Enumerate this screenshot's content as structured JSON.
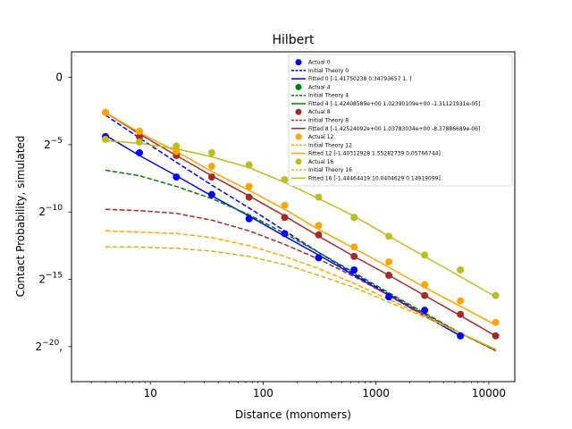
{
  "chart_data": {
    "type": "line",
    "title": "Hilbert",
    "xlabel": "Distance (monomers)",
    "ylabel": "Contact Probability, simulated",
    "x_scale": "log",
    "y_scale": "log2",
    "xlim": [
      2.0,
      17000
    ],
    "ylim": [
      -22.6,
      1.9
    ],
    "x_ticks": [
      {
        "value": 10,
        "label": "10"
      },
      {
        "value": 100,
        "label": "100"
      },
      {
        "value": 1000,
        "label": "1000"
      },
      {
        "value": 10000,
        "label": "10000"
      }
    ],
    "y_ticks": [
      {
        "value": 0,
        "label": "0"
      },
      {
        "value": -5,
        "base": "2",
        "exp": "−5"
      },
      {
        "value": -10,
        "base": "2",
        "exp": "−10"
      },
      {
        "value": -15,
        "base": "2",
        "exp": "−15"
      },
      {
        "value": -20,
        "base": "2",
        "exp": "−20",
        "suffix": ","
      }
    ],
    "legend_position": "top-right",
    "series": [
      {
        "name": "Actual 0",
        "kind": "scatter",
        "color": "#0000ff",
        "x": [
          4,
          8,
          17,
          35,
          75,
          155,
          310,
          640,
          1300,
          2700,
          5600
        ],
        "y": [
          -4.4,
          -5.6,
          -7.4,
          -8.7,
          -10.5,
          -11.6,
          -13.4,
          -14.3,
          -16.3,
          -17.3,
          -19.2
        ]
      },
      {
        "name": "Initial Theory 0",
        "kind": "line",
        "dashed": true,
        "color": "#0000ff",
        "x": [
          4,
          8,
          17,
          35,
          75,
          155,
          310,
          640,
          1300,
          2700,
          5600,
          11500
        ],
        "y": [
          -2.8,
          -4.5,
          -6.3,
          -8.0,
          -9.7,
          -11.4,
          -13.0,
          -14.6,
          -16.1,
          -17.6,
          -19.0,
          -20.2
        ]
      },
      {
        "name": "Fitted 0 [-1.41750238  0.34793657  1.        ]",
        "kind": "line",
        "color": "#0000ff",
        "x": [
          4,
          8,
          17,
          35,
          75,
          155,
          310,
          640,
          1300,
          2700,
          5600
        ],
        "y": [
          -4.3,
          -5.8,
          -7.3,
          -8.8,
          -10.3,
          -11.8,
          -13.2,
          -14.7,
          -16.2,
          -17.7,
          -19.2
        ]
      },
      {
        "name": "Actual 4",
        "kind": "scatter",
        "color": "#008000",
        "x": [],
        "y": []
      },
      {
        "name": "Initial Theory 4",
        "kind": "line",
        "dashed": true,
        "color": "#008000",
        "x": [
          4,
          8,
          17,
          35,
          75,
          155,
          310,
          640,
          1300,
          2700,
          5600,
          11500
        ],
        "y": [
          -6.9,
          -7.3,
          -8.1,
          -9.0,
          -10.2,
          -11.6,
          -13.0,
          -14.5,
          -16.0,
          -17.5,
          -19.0,
          -20.3
        ]
      },
      {
        "name": "Fitted 4 [-1.42408589e+00  1.02390109e+00 -1.31121931e-05]",
        "kind": "line",
        "color": "#008000",
        "x": [],
        "y": []
      },
      {
        "name": "Actual 8",
        "kind": "scatter",
        "color": "#a52a2a",
        "x": [
          4,
          8,
          17,
          35,
          75,
          155,
          310,
          640,
          1300,
          2700,
          5600,
          11500
        ],
        "y": [
          -2.6,
          -4.4,
          -5.8,
          -7.4,
          -8.9,
          -10.4,
          -11.7,
          -13.3,
          -14.7,
          -16.2,
          -17.6,
          -19.2
        ]
      },
      {
        "name": "Initial Theory 8",
        "kind": "line",
        "dashed": true,
        "color": "#a52a2a",
        "x": [
          4,
          8,
          17,
          35,
          75,
          155,
          310,
          640,
          1300,
          2700,
          5600,
          11500
        ],
        "y": [
          -9.8,
          -9.9,
          -10.1,
          -10.6,
          -11.4,
          -12.4,
          -13.5,
          -14.8,
          -16.2,
          -17.6,
          -19.0,
          -20.3
        ]
      },
      {
        "name": "Fitted 8 [-1.42524092e+00  1.03783034e+00 -8.37886689e-06]",
        "kind": "line",
        "color": "#a52a2a",
        "x": [
          4,
          8,
          17,
          35,
          75,
          155,
          310,
          640,
          1300,
          2700,
          5600,
          11500
        ],
        "y": [
          -2.6,
          -4.2,
          -5.8,
          -7.3,
          -8.8,
          -10.3,
          -11.8,
          -13.3,
          -14.7,
          -16.2,
          -17.7,
          -19.2
        ]
      },
      {
        "name": "Actual 12",
        "kind": "scatter",
        "color": "#ffa500",
        "x": [
          4,
          8,
          17,
          35,
          75,
          155,
          310,
          640,
          1300,
          2700,
          5600,
          11500
        ],
        "y": [
          -2.6,
          -4.0,
          -5.5,
          -6.6,
          -8.1,
          -9.5,
          -11.0,
          -12.6,
          -13.7,
          -15.4,
          -16.6,
          -18.2
        ]
      },
      {
        "name": "Initial Theory 12",
        "kind": "line",
        "dashed": true,
        "color": "#ffa500",
        "x": [
          4,
          8,
          17,
          35,
          75,
          155,
          310,
          640,
          1300,
          2700,
          5600,
          11500
        ],
        "y": [
          -11.4,
          -11.5,
          -11.6,
          -11.9,
          -12.5,
          -13.3,
          -14.2,
          -15.3,
          -16.5,
          -17.7,
          -19.0,
          -20.2
        ]
      },
      {
        "name": "Fitted 12 [-1.40312928  1.55282739  0.05766744]",
        "kind": "line",
        "color": "#ffa500",
        "x": [
          4,
          8,
          17,
          35,
          75,
          155,
          310,
          640,
          1300,
          2700,
          5600,
          11500
        ],
        "y": [
          -2.6,
          -4.1,
          -5.5,
          -7.0,
          -8.4,
          -9.8,
          -11.3,
          -12.7,
          -14.1,
          -15.6,
          -17.0,
          -18.4
        ]
      },
      {
        "name": "Actual 16",
        "kind": "scatter",
        "color": "#bcbd22",
        "x": [
          4,
          8,
          17,
          35,
          75,
          155,
          310,
          640,
          1300,
          2700,
          5600,
          11500
        ],
        "y": [
          -4.6,
          -4.8,
          -5.1,
          -5.6,
          -6.5,
          -7.6,
          -8.9,
          -10.4,
          -11.8,
          -13.2,
          -14.3,
          -16.2
        ]
      },
      {
        "name": "Initial Theory 16",
        "kind": "line",
        "dashed": true,
        "color": "#bcbd22",
        "x": [
          4,
          8,
          17,
          35,
          75,
          155,
          310,
          640,
          1300,
          2700,
          5600,
          11500
        ],
        "y": [
          -12.6,
          -12.6,
          -12.7,
          -12.9,
          -13.3,
          -13.9,
          -14.7,
          -15.6,
          -16.7,
          -17.8,
          -19.0,
          -20.2
        ]
      },
      {
        "name": "Fitted 16 [-1.44464419 10.0404629   0.14919099]",
        "kind": "line",
        "color": "#bcbd22",
        "x": [
          4,
          8,
          17,
          35,
          75,
          155,
          310,
          640,
          1300,
          2700,
          5600,
          11500
        ],
        "y": [
          -4.7,
          -4.9,
          -5.3,
          -5.9,
          -6.7,
          -7.8,
          -9.0,
          -10.3,
          -11.8,
          -13.3,
          -14.8,
          -16.3
        ]
      }
    ]
  }
}
